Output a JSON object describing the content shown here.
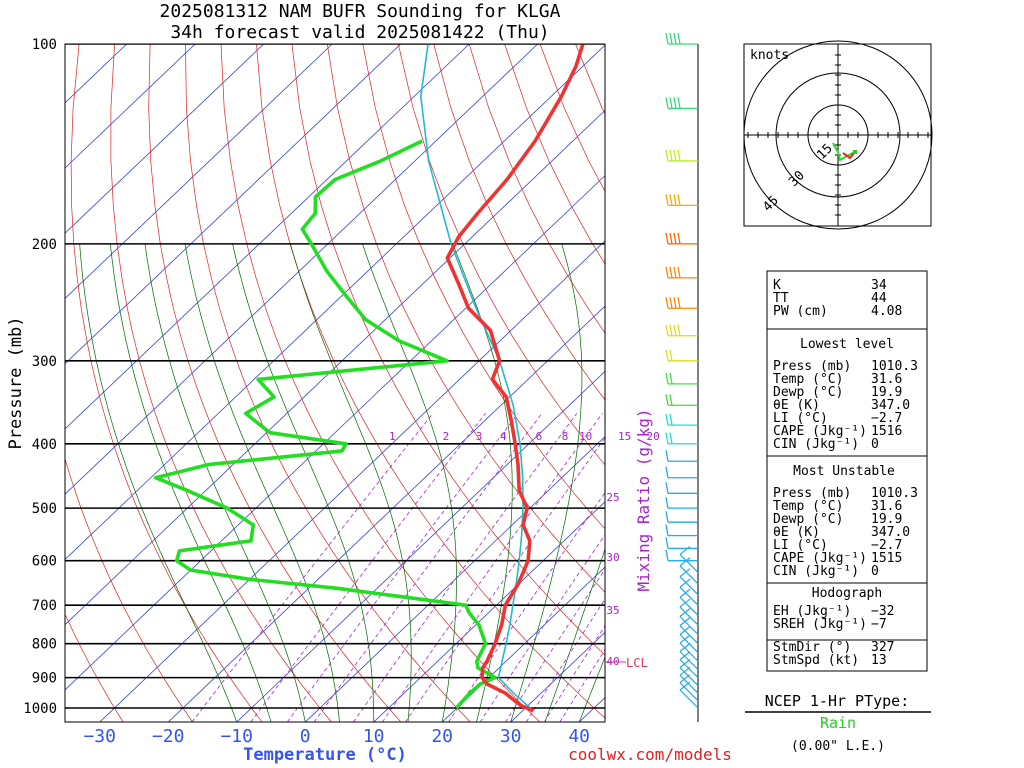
{
  "header": {
    "title_line1": "2025081312 NAM BUFR Sounding for KLGA",
    "title_line2": "34h forecast valid 2025081422 (Thu)"
  },
  "axes": {
    "xlabel": "Temperature (°C)",
    "ylabel": "Pressure (mb)",
    "mixing_ratio_label": "Mixing Ratio (g/kg)",
    "temperature_ticks": [
      "−30",
      "−20",
      "−10",
      "0",
      "10",
      "20",
      "30",
      "40"
    ],
    "pressure_ticks": [
      "100",
      "200",
      "300",
      "400",
      "500",
      "600",
      "700",
      "800",
      "900",
      "1000"
    ],
    "lcl_label": "LCL"
  },
  "footer": {
    "source": "coolwx.com/models"
  },
  "hodograph": {
    "units_label": "knots",
    "ring_labels": [
      "15",
      "30",
      "45"
    ]
  },
  "indices": {
    "rows": [
      {
        "label": "K",
        "value": "34"
      },
      {
        "label": "TT",
        "value": "44"
      },
      {
        "label": "PW (cm)",
        "value": "4.08"
      }
    ],
    "lowest_title": "Lowest level",
    "lowest": [
      {
        "label": "Press (mb)",
        "value": "1010.3"
      },
      {
        "label": "Temp (°C)",
        "value": "31.6"
      },
      {
        "label": "Dewp (°C)",
        "value": "19.9"
      },
      {
        "label": "θE (K)",
        "value": "347.0"
      },
      {
        "label": "LI (°C)",
        "value": "−2.7"
      },
      {
        "label": "CAPE (Jkg⁻¹)",
        "value": "1516"
      },
      {
        "label": "CIN (Jkg⁻¹)",
        "value": "0"
      }
    ],
    "unstable_title": "Most Unstable",
    "unstable": [
      {
        "label": "Press (mb)",
        "value": "1010.3"
      },
      {
        "label": "Temp (°C)",
        "value": "31.6"
      },
      {
        "label": "Dewp (°C)",
        "value": "19.9"
      },
      {
        "label": "θE (K)",
        "value": "347.0"
      },
      {
        "label": "LI (°C)",
        "value": "−2.7"
      },
      {
        "label": "CAPE (Jkg⁻¹)",
        "value": "1515"
      },
      {
        "label": "CIN (Jkg⁻¹)",
        "value": "0"
      }
    ],
    "hodo_title": "Hodograph",
    "hodo": [
      {
        "label": "EH (Jkg⁻¹)",
        "value": "−32"
      },
      {
        "label": "SREH (Jkg⁻¹)",
        "value": "−7"
      }
    ],
    "storm": [
      {
        "label": "StmDir (°)",
        "value": "327"
      },
      {
        "label": "StmSpd (kt)",
        "value": "13"
      }
    ]
  },
  "ptype": {
    "title": "NCEP 1-Hr PType:",
    "value": "Rain",
    "value_color": "#22cc22",
    "amount": "(0.00\" L.E.)"
  },
  "colors": {
    "temperature": "#ee3333",
    "dewpoint": "#22dd22",
    "parcel": "#22bbcc",
    "isotherm": "#3344dd",
    "dry_adiabat": "#dd2222",
    "moist_adiabat": "#006600",
    "mixing_ratio": "#aa22cc",
    "axis_label_blue": "#3355ee"
  },
  "chart_data": {
    "type": "line",
    "chart_kind": "skew-T log-P sounding",
    "xlabel": "Temperature (°C)",
    "ylabel": "Pressure (mb)",
    "xlim": [
      -35,
      40
    ],
    "ylim": [
      1050,
      100
    ],
    "y_scale": "log",
    "series": [
      {
        "key": "temperature",
        "points": [
          [
            1010,
            31.6
          ],
          [
            990,
            28.8
          ],
          [
            950,
            24.8
          ],
          [
            920,
            20.7
          ],
          [
            900,
            19.0
          ],
          [
            870,
            17.6
          ],
          [
            850,
            17.2
          ],
          [
            800,
            15.7
          ],
          [
            750,
            13.8
          ],
          [
            700,
            11.3
          ],
          [
            650,
            9.9
          ],
          [
            600,
            7.8
          ],
          [
            560,
            5.0
          ],
          [
            530,
            1.6
          ],
          [
            500,
            -0.4
          ],
          [
            470,
            -4.3
          ],
          [
            430,
            -8.4
          ],
          [
            400,
            -12.0
          ],
          [
            370,
            -16.0
          ],
          [
            340,
            -20.5
          ],
          [
            320,
            -25.2
          ],
          [
            300,
            -27.0
          ],
          [
            270,
            -33.0
          ],
          [
            250,
            -39.6
          ],
          [
            230,
            -44.7
          ],
          [
            210,
            -50.4
          ],
          [
            195,
            -52.0
          ],
          [
            180,
            -52.8
          ],
          [
            160,
            -53.7
          ],
          [
            140,
            -55.5
          ],
          [
            120,
            -58.5
          ],
          [
            108,
            -61.0
          ],
          [
            100,
            -63.4
          ]
        ]
      },
      {
        "key": "dewpoint",
        "points": [
          [
            1000,
            19.9
          ],
          [
            950,
            19.6
          ],
          [
            920,
            19.7
          ],
          [
            900,
            20.9
          ],
          [
            870,
            16.9
          ],
          [
            850,
            15.7
          ],
          [
            800,
            14.3
          ],
          [
            750,
            10.5
          ],
          [
            720,
            7.3
          ],
          [
            700,
            5.5
          ],
          [
            680,
            -5.0
          ],
          [
            660,
            -16.0
          ],
          [
            640,
            -30.0
          ],
          [
            620,
            -40.0
          ],
          [
            600,
            -43.5
          ],
          [
            580,
            -44.6
          ],
          [
            560,
            -35.7
          ],
          [
            530,
            -37.8
          ],
          [
            500,
            -44.2
          ],
          [
            470,
            -52.8
          ],
          [
            450,
            -59.3
          ],
          [
            430,
            -53.6
          ],
          [
            410,
            -36.2
          ],
          [
            400,
            -36.7
          ],
          [
            385,
            -49.5
          ],
          [
            360,
            -56.0
          ],
          [
            340,
            -54.4
          ],
          [
            320,
            -59.4
          ],
          [
            300,
            -34.7
          ],
          [
            280,
            -44.7
          ],
          [
            260,
            -52.9
          ],
          [
            240,
            -59.2
          ],
          [
            220,
            -65.9
          ],
          [
            200,
            -72.4
          ],
          [
            190,
            -76.0
          ],
          [
            180,
            -76.5
          ],
          [
            170,
            -79.0
          ],
          [
            160,
            -78.8
          ],
          [
            150,
            -75.0
          ],
          [
            140,
            -72.0
          ]
        ]
      },
      {
        "key": "parcel",
        "points": [
          [
            1010,
            31.6
          ],
          [
            950,
            26.0
          ],
          [
            900,
            21.4
          ],
          [
            850,
            19.4
          ],
          [
            800,
            17.3
          ],
          [
            750,
            15.0
          ],
          [
            700,
            12.4
          ],
          [
            650,
            9.6
          ],
          [
            600,
            6.5
          ],
          [
            550,
            3.0
          ],
          [
            500,
            -1.0
          ],
          [
            450,
            -5.7
          ],
          [
            400,
            -11.3
          ],
          [
            350,
            -18.2
          ],
          [
            300,
            -27.0
          ],
          [
            250,
            -38.5
          ],
          [
            200,
            -52.0
          ],
          [
            150,
            -68.0
          ],
          [
            120,
            -79.0
          ],
          [
            100,
            -86.0
          ]
        ]
      }
    ],
    "lcl_pressure": 862,
    "mixing_ratio_values": [
      1,
      2,
      3,
      4,
      6,
      8,
      10,
      15,
      20,
      25,
      30,
      35,
      40
    ],
    "wind_profile_kt": [
      [
        1000,
        13
      ],
      [
        950,
        15
      ],
      [
        900,
        14
      ],
      [
        850,
        12
      ],
      [
        800,
        10
      ],
      [
        750,
        10
      ],
      [
        700,
        10
      ],
      [
        650,
        15
      ],
      [
        600,
        18
      ],
      [
        550,
        20
      ],
      [
        500,
        20
      ],
      [
        450,
        22
      ],
      [
        400,
        25
      ],
      [
        350,
        25
      ],
      [
        300,
        30
      ],
      [
        250,
        35
      ],
      [
        200,
        40
      ],
      [
        170,
        40
      ],
      [
        150,
        35
      ],
      [
        130,
        35
      ],
      [
        115,
        40
      ],
      [
        100,
        40
      ]
    ]
  }
}
